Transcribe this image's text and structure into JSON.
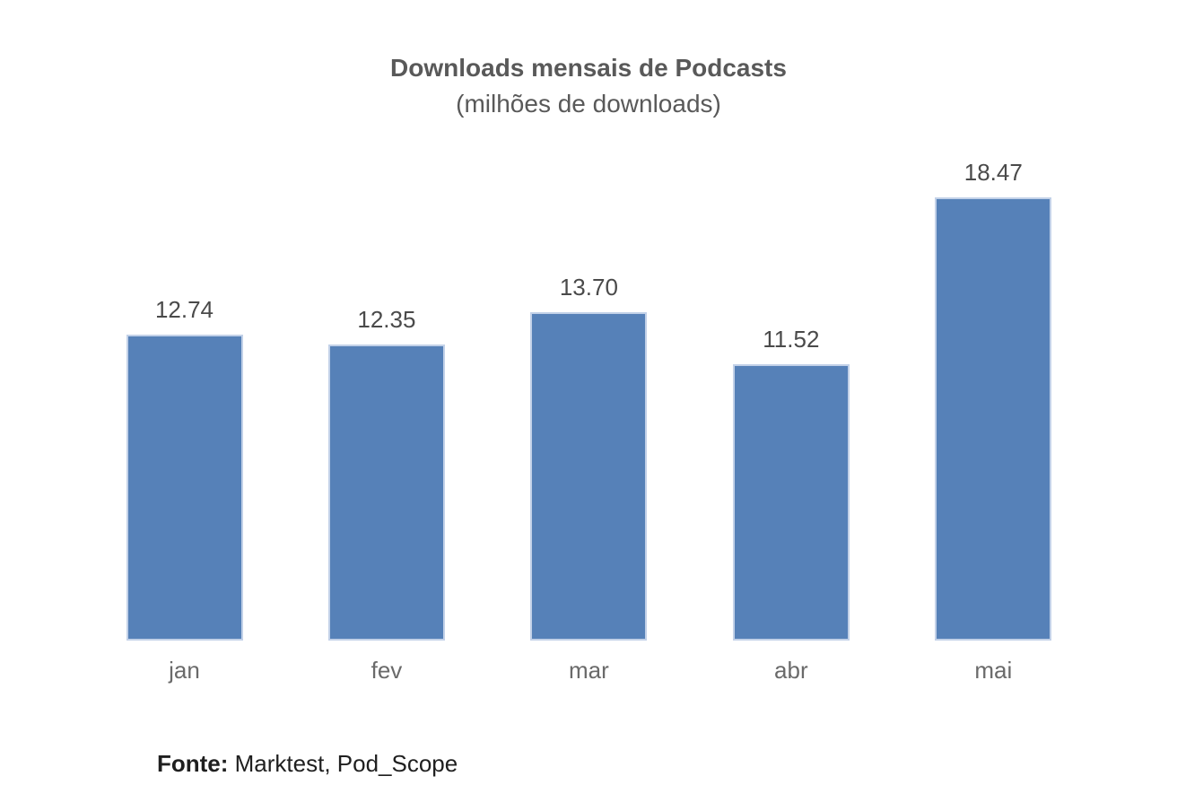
{
  "chart_data": {
    "type": "bar",
    "title": "Downloads mensais de Podcasts",
    "subtitle": "(milhões de downloads)",
    "categories": [
      "jan",
      "fev",
      "mar",
      "abr",
      "mai"
    ],
    "values": [
      12.74,
      12.35,
      13.7,
      11.52,
      18.47
    ],
    "data_labels": [
      "12.74",
      "12.35",
      "13.70",
      "11.52",
      "18.47"
    ],
    "series_name": "Downloads mensais",
    "ylabel": "",
    "xlabel": "",
    "ylim": [
      0,
      20
    ],
    "gridlines": false,
    "legend_position": "none",
    "bar_color": "#5681b8",
    "bar_border_color": "#c2d1e8",
    "title_color": "#595959",
    "data_label_color": "#4a4a4a",
    "category_label_color": "#6a6a6a",
    "background_color": "#ffffff"
  },
  "source": {
    "label": "Fonte:",
    "text": " Marktest, Pod_Scope"
  }
}
